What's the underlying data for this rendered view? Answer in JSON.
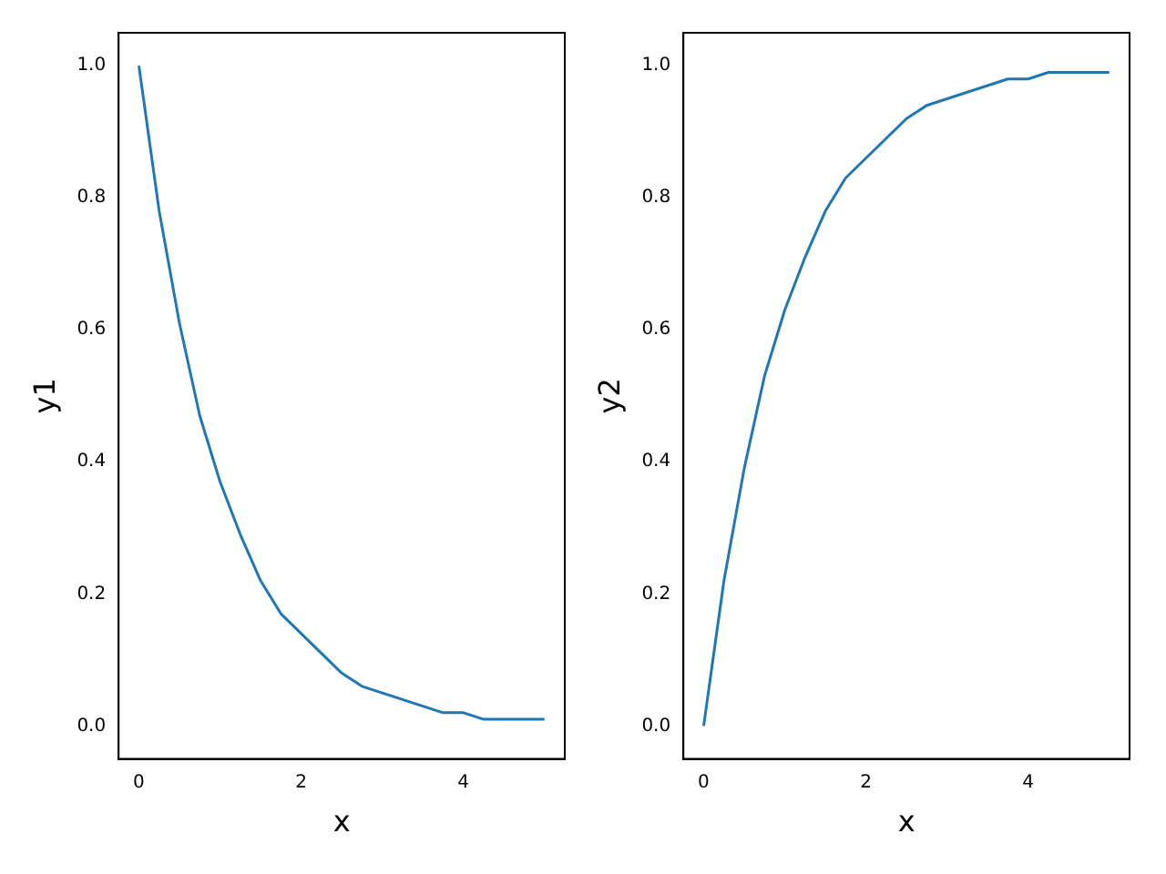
{
  "chart_data": [
    {
      "type": "line",
      "xlabel": "x",
      "ylabel": "y1",
      "x": [
        0,
        0.25,
        0.5,
        0.75,
        1,
        1.25,
        1.5,
        1.75,
        2,
        2.25,
        2.5,
        2.75,
        3,
        3.25,
        3.5,
        3.75,
        4,
        4.25,
        4.5,
        4.75,
        5
      ],
      "series": [
        {
          "color": "#1f77b4",
          "values": [
            1,
            0.78,
            0.61,
            0.47,
            0.37,
            0.29,
            0.22,
            0.17,
            0.14,
            0.11,
            0.08,
            0.06,
            0.05,
            0.04,
            0.03,
            0.02,
            0.02,
            0.01,
            0.01,
            0.01,
            0.01
          ]
        }
      ],
      "xlim": [
        -0.25,
        5.25
      ],
      "ylim": [
        -0.05,
        1.05
      ],
      "xticks": [
        0,
        2,
        4
      ],
      "yticks": [
        {
          "value": 0,
          "label": "0.0"
        },
        {
          "value": 0.2,
          "label": "0.2"
        },
        {
          "value": 0.4,
          "label": "0.4"
        },
        {
          "value": 0.6,
          "label": "0.6"
        },
        {
          "value": 0.8,
          "label": "0.8"
        },
        {
          "value": 1,
          "label": "1.0"
        }
      ]
    },
    {
      "type": "line",
      "xlabel": "x",
      "ylabel": "y2",
      "x": [
        0,
        0.25,
        0.5,
        0.75,
        1,
        1.25,
        1.5,
        1.75,
        2,
        2.25,
        2.5,
        2.75,
        3,
        3.25,
        3.5,
        3.75,
        4,
        4.25,
        4.5,
        4.75,
        5
      ],
      "series": [
        {
          "color": "#1f77b4",
          "values": [
            0,
            0.22,
            0.39,
            0.53,
            0.63,
            0.71,
            0.78,
            0.83,
            0.86,
            0.89,
            0.92,
            0.94,
            0.95,
            0.96,
            0.97,
            0.98,
            0.98,
            0.99,
            0.99,
            0.99,
            0.99
          ]
        }
      ],
      "xlim": [
        -0.25,
        5.25
      ],
      "ylim": [
        -0.05,
        1.05
      ],
      "xticks": [
        0,
        2,
        4
      ],
      "yticks": [
        {
          "value": 0,
          "label": "0.0"
        },
        {
          "value": 0.2,
          "label": "0.2"
        },
        {
          "value": 0.4,
          "label": "0.4"
        },
        {
          "value": 0.6,
          "label": "0.6"
        },
        {
          "value": 0.8,
          "label": "0.8"
        },
        {
          "value": 1,
          "label": "1.0"
        }
      ]
    }
  ]
}
